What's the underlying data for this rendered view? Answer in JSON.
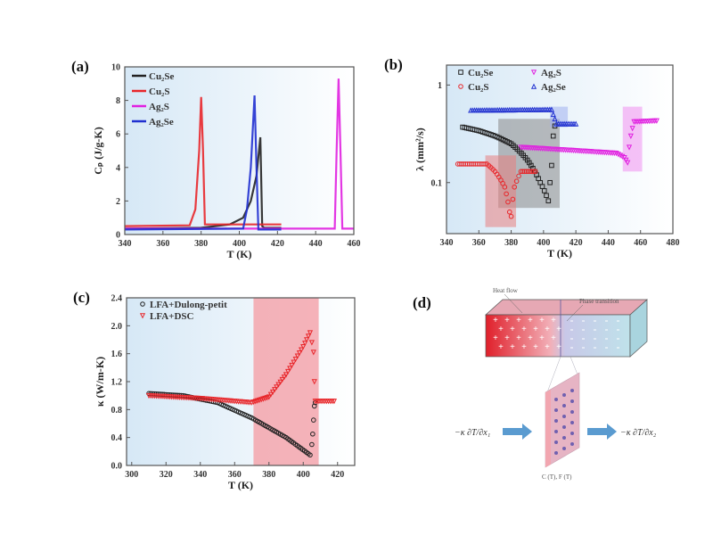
{
  "chart_data": [
    {
      "panel": "(a)",
      "type": "line",
      "xlabel": "T (K)",
      "ylabel": "Cₚ (J/g-K)",
      "xlim": [
        340,
        460
      ],
      "ylim": [
        0,
        10
      ],
      "xticks": [
        "340",
        "360",
        "380",
        "400",
        "420",
        "440",
        "460"
      ],
      "yticks": [
        "0",
        "2",
        "4",
        "6",
        "8",
        "10"
      ],
      "legend_position": "top-left",
      "series": [
        {
          "name": "Cu₂Se",
          "color": "#222222",
          "points": [
            [
              340,
              0.35
            ],
            [
              380,
              0.4
            ],
            [
              395,
              0.6
            ],
            [
              402,
              1.0
            ],
            [
              406,
              2.0
            ],
            [
              409,
              3.5
            ],
            [
              411,
              5.8
            ],
            [
              412,
              0.5
            ],
            [
              413,
              0.4
            ],
            [
              422,
              0.4
            ]
          ]
        },
        {
          "name": "Cu₂S",
          "color": "#e8262a",
          "points": [
            [
              340,
              0.5
            ],
            [
              374,
              0.55
            ],
            [
              377,
              1.5
            ],
            [
              379,
              5
            ],
            [
              380,
              8.2
            ],
            [
              381,
              5
            ],
            [
              382,
              0.6
            ],
            [
              422,
              0.6
            ]
          ]
        },
        {
          "name": "Ag₂S",
          "color": "#e020e0",
          "points": [
            [
              340,
              0.35
            ],
            [
              450,
              0.35
            ],
            [
              451,
              5
            ],
            [
              452,
              9.3
            ],
            [
              453,
              5
            ],
            [
              454,
              0.35
            ],
            [
              460,
              0.35
            ]
          ]
        },
        {
          "name": "Ag₂Se",
          "color": "#2030d0",
          "points": [
            [
              340,
              0.3
            ],
            [
              402,
              0.35
            ],
            [
              404,
              1.5
            ],
            [
              406,
              4
            ],
            [
              408,
              8.3
            ],
            [
              409,
              4
            ],
            [
              410,
              0.3
            ],
            [
              422,
              0.3
            ]
          ]
        }
      ]
    },
    {
      "panel": "(b)",
      "type": "scatter",
      "xlabel": "T (K)",
      "ylabel": "λ (mm²/s)",
      "xlim": [
        340,
        480
      ],
      "ylim": [
        0.03,
        1.6
      ],
      "yscale": "log",
      "xticks": [
        "340",
        "360",
        "380",
        "400",
        "420",
        "440",
        "460",
        "480"
      ],
      "yticks": [
        {
          "value": 0.1,
          "label": "0.1"
        },
        {
          "value": 1,
          "label": "1"
        }
      ],
      "legend_position": "top-left",
      "shaded_regions": [
        {
          "x": [
            372,
            410
          ],
          "y": [
            0.055,
            0.45
          ],
          "color": "#888888"
        },
        {
          "x": [
            364,
            383
          ],
          "y": [
            0.035,
            0.19
          ],
          "color": "#e88080"
        },
        {
          "x": [
            449,
            461
          ],
          "y": [
            0.13,
            0.6
          ],
          "color": "#f090f0"
        },
        {
          "x": [
            404,
            415
          ],
          "y": [
            0.37,
            0.6
          ],
          "color": "#a0b0f0"
        }
      ],
      "series": [
        {
          "name": "Cu₂Se",
          "marker": "square",
          "color": "#222222",
          "points": [
            [
              350,
              0.37
            ],
            [
              360,
              0.34
            ],
            [
              370,
              0.3
            ],
            [
              380,
              0.25
            ],
            [
              390,
              0.17
            ],
            [
              398,
              0.1
            ],
            [
              403,
              0.065
            ],
            [
              404,
              0.1
            ],
            [
              405,
              0.15
            ],
            [
              406,
              0.3
            ],
            [
              407,
              0.38
            ]
          ]
        },
        {
          "name": "Cu₂S",
          "marker": "circle",
          "color": "#e8262a",
          "points": [
            [
              347,
              0.155
            ],
            [
              365,
              0.155
            ],
            [
              370,
              0.13
            ],
            [
              376,
              0.09
            ],
            [
              379,
              0.05
            ],
            [
              380,
              0.045
            ],
            [
              382,
              0.09
            ],
            [
              386,
              0.13
            ],
            [
              395,
              0.13
            ]
          ]
        },
        {
          "name": "Ag₂S",
          "marker": "triangle-down",
          "color": "#e020e0",
          "points": [
            [
              386,
              0.23
            ],
            [
              445,
              0.2
            ],
            [
              450,
              0.18
            ],
            [
              452,
              0.16
            ],
            [
              454,
              0.3
            ],
            [
              456,
              0.42
            ],
            [
              470,
              0.43
            ]
          ]
        },
        {
          "name": "Ag₂Se",
          "marker": "triangle-up",
          "color": "#2030d0",
          "points": [
            [
              355,
              0.55
            ],
            [
              405,
              0.56
            ],
            [
              406,
              0.5
            ],
            [
              408,
              0.4
            ],
            [
              420,
              0.4
            ]
          ]
        }
      ]
    },
    {
      "panel": "(c)",
      "type": "scatter",
      "xlabel": "T (K)",
      "ylabel": "κ (W/m-K)",
      "xlim": [
        297,
        430
      ],
      "ylim": [
        0,
        2.4
      ],
      "xticks": [
        "300",
        "320",
        "340",
        "360",
        "380",
        "400",
        "420"
      ],
      "yticks": [
        "0.0",
        "0.4",
        "0.8",
        "1.2",
        "1.6",
        "2.0",
        "2.4"
      ],
      "legend_position": "top-left",
      "shaded_regions": [
        {
          "x": [
            371,
            409
          ],
          "y": [
            0,
            2.4
          ],
          "color": "#f4a0a8"
        }
      ],
      "series": [
        {
          "name": "LFA+Dulong-petit",
          "marker": "circle",
          "color": "#222222",
          "points": [
            [
              310,
              1.03
            ],
            [
              330,
              1.0
            ],
            [
              350,
              0.9
            ],
            [
              370,
              0.68
            ],
            [
              390,
              0.4
            ],
            [
              404,
              0.15
            ],
            [
              405,
              0.3
            ],
            [
              405.5,
              0.45
            ],
            [
              406,
              0.65
            ],
            [
              406.5,
              0.85
            ],
            [
              407,
              0.9
            ]
          ]
        },
        {
          "name": "LFA+DSC",
          "marker": "triangle-down",
          "color": "#e8262a",
          "points": [
            [
              310,
              1.0
            ],
            [
              340,
              0.96
            ],
            [
              370,
              0.9
            ],
            [
              380,
              0.98
            ],
            [
              390,
              1.3
            ],
            [
              400,
              1.7
            ],
            [
              404,
              1.9
            ],
            [
              406,
              1.62
            ],
            [
              406.5,
              1.2
            ],
            [
              407,
              0.92
            ],
            [
              418,
              0.92
            ]
          ]
        }
      ]
    }
  ],
  "diagram": {
    "panel": "(d)",
    "heat_flow_label": "Heat flow",
    "phase_transition_label": "Phase transition",
    "flux_in": "−κ ∂T/∂x₁",
    "flux_out": "−κ ∂T/∂x₂",
    "interface_label": "C (T), F (T)"
  }
}
